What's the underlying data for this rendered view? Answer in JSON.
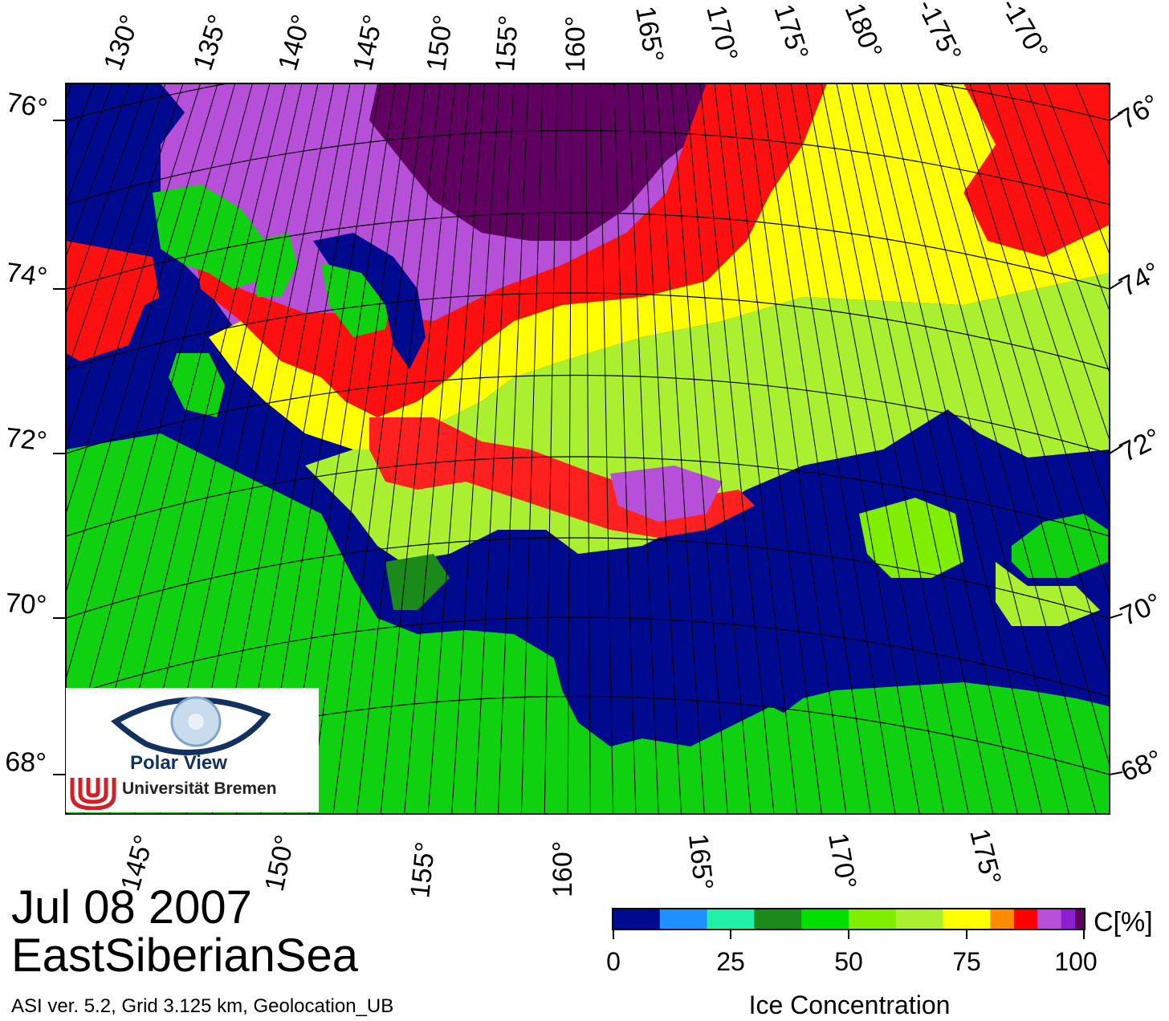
{
  "map": {
    "top_longitude_labels": [
      "130°",
      "135°",
      "140°",
      "145°",
      "150°",
      "155°",
      "160°",
      "165°",
      "170°",
      "175°",
      "180°",
      "-175°",
      "-170°"
    ],
    "bottom_longitude_labels": [
      "145°",
      "150°",
      "155°",
      "160°",
      "165°",
      "170°",
      "175°"
    ],
    "left_latitude_labels": [
      "76°",
      "74°",
      "72°",
      "70°",
      "68°"
    ],
    "right_latitude_labels": [
      "76°",
      "74°",
      "72°",
      "70°",
      "68°"
    ],
    "colors": {
      "land": "#0fd10f",
      "open_water": "#000a8f",
      "grid_lines": "#000000",
      "frame": "#000000"
    }
  },
  "logo": {
    "line1": "Polar View",
    "line2": "Universität Bremen"
  },
  "title": {
    "date": "Jul 08 2007",
    "region": "EastSiberianSea"
  },
  "footer": {
    "info": "ASI ver. 5.2,  Grid 3.125 km, Geolocation_UB"
  },
  "colorbar": {
    "unit": "C[%]",
    "title": "Ice Concentration",
    "tick_labels": [
      "0",
      "25",
      "50",
      "75",
      "100"
    ],
    "colors": [
      "#000a8f",
      "#1e90ff",
      "#20f0a8",
      "#1a8a1a",
      "#00e000",
      "#80ee00",
      "#aaf030",
      "#ffff00",
      "#ff8c00",
      "#ff0000",
      "#b650d8",
      "#8a20d0",
      "#600060"
    ]
  }
}
